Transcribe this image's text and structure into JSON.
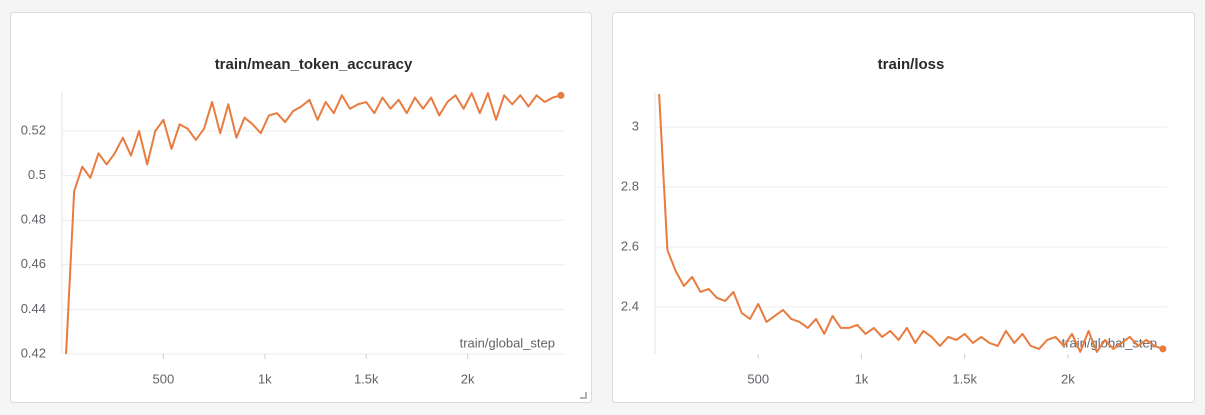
{
  "chart_data": [
    {
      "type": "line",
      "title": "train/mean_token_accuracy",
      "x_label": "train/global_step",
      "x": [
        20,
        60,
        100,
        140,
        180,
        220,
        260,
        300,
        340,
        380,
        420,
        460,
        500,
        540,
        580,
        620,
        660,
        700,
        740,
        780,
        820,
        860,
        900,
        940,
        980,
        1020,
        1060,
        1100,
        1140,
        1180,
        1220,
        1260,
        1300,
        1340,
        1380,
        1420,
        1460,
        1500,
        1540,
        1580,
        1620,
        1660,
        1700,
        1740,
        1780,
        1820,
        1860,
        1900,
        1940,
        1980,
        2020,
        2060,
        2100,
        2140,
        2180,
        2220,
        2260,
        2300,
        2340,
        2380,
        2420,
        2460
      ],
      "series": [
        {
          "name": "train/mean_token_accuracy",
          "color": "#e87b3e",
          "values": [
            0.42,
            0.493,
            0.504,
            0.499,
            0.51,
            0.505,
            0.51,
            0.517,
            0.509,
            0.52,
            0.505,
            0.52,
            0.525,
            0.512,
            0.523,
            0.521,
            0.516,
            0.521,
            0.533,
            0.519,
            0.532,
            0.517,
            0.526,
            0.523,
            0.519,
            0.527,
            0.528,
            0.524,
            0.529,
            0.531,
            0.534,
            0.525,
            0.533,
            0.528,
            0.536,
            0.53,
            0.532,
            0.533,
            0.528,
            0.535,
            0.53,
            0.534,
            0.528,
            0.535,
            0.53,
            0.535,
            0.527,
            0.533,
            0.536,
            0.53,
            0.537,
            0.528,
            0.537,
            0.525,
            0.536,
            0.532,
            0.536,
            0.531,
            0.536,
            0.533,
            0.535,
            0.536
          ]
        }
      ],
      "xlim": [
        0,
        2480
      ],
      "xticks": [
        500,
        {
          "value": 1000,
          "label": "1k"
        },
        {
          "value": 1500,
          "label": "1.5k"
        },
        {
          "value": 2000,
          "label": "2k"
        }
      ],
      "ylim": [
        0.42,
        0.5375
      ],
      "yticks": [
        0.42,
        0.44,
        0.46,
        0.48,
        0.5,
        0.52
      ],
      "grid": true
    },
    {
      "type": "line",
      "title": "train/loss",
      "x_label": "train/global_step",
      "x": [
        20,
        60,
        100,
        140,
        180,
        220,
        260,
        300,
        340,
        380,
        420,
        460,
        500,
        540,
        580,
        620,
        660,
        700,
        740,
        780,
        820,
        860,
        900,
        940,
        980,
        1020,
        1060,
        1100,
        1140,
        1180,
        1220,
        1260,
        1300,
        1340,
        1380,
        1420,
        1460,
        1500,
        1540,
        1580,
        1620,
        1660,
        1700,
        1740,
        1780,
        1820,
        1860,
        1900,
        1940,
        1980,
        2020,
        2060,
        2100,
        2140,
        2180,
        2220,
        2260,
        2300,
        2340,
        2380,
        2420,
        2460
      ],
      "series": [
        {
          "name": "train/loss",
          "color": "#e87b3e",
          "values": [
            3.11,
            2.59,
            2.52,
            2.47,
            2.5,
            2.45,
            2.46,
            2.43,
            2.42,
            2.45,
            2.38,
            2.36,
            2.41,
            2.35,
            2.37,
            2.39,
            2.36,
            2.35,
            2.33,
            2.36,
            2.31,
            2.37,
            2.33,
            2.33,
            2.34,
            2.31,
            2.33,
            2.3,
            2.32,
            2.29,
            2.33,
            2.28,
            2.32,
            2.3,
            2.27,
            2.3,
            2.29,
            2.31,
            2.28,
            2.3,
            2.28,
            2.27,
            2.32,
            2.28,
            2.31,
            2.27,
            2.26,
            2.29,
            2.3,
            2.27,
            2.31,
            2.25,
            2.32,
            2.25,
            2.29,
            2.26,
            2.28,
            2.3,
            2.27,
            2.29,
            2.27,
            2.26
          ]
        }
      ],
      "xlim": [
        0,
        2480
      ],
      "xticks": [
        500,
        {
          "value": 1000,
          "label": "1k"
        },
        {
          "value": 1500,
          "label": "1.5k"
        },
        {
          "value": 2000,
          "label": "2k"
        }
      ],
      "ylim": [
        2.243,
        3.117
      ],
      "yticks": [
        2.4,
        2.6,
        2.8,
        3
      ],
      "grid": true
    }
  ]
}
